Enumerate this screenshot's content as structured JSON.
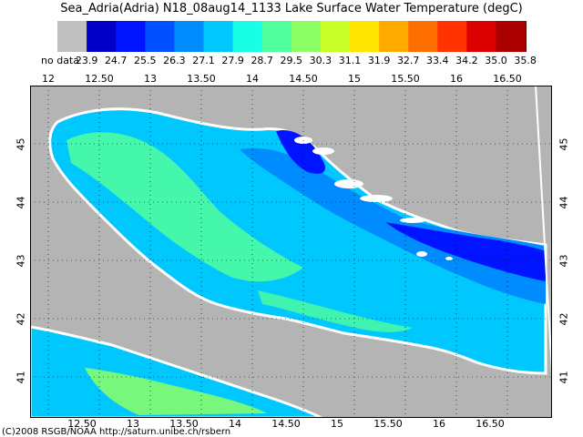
{
  "title": "Sea_Adria(Adria) N18_08aug14_1133 Lake Surface Water Temperature (degC)",
  "legend": {
    "nodata_label": "no data",
    "values": [
      "23.9",
      "24.7",
      "25.5",
      "26.3",
      "27.1",
      "27.9",
      "28.7",
      "29.5",
      "30.3",
      "31.1",
      "31.9",
      "32.7",
      "33.4",
      "34.2",
      "35.0",
      "35.8"
    ],
    "nodata_color": "#c0c0c0",
    "colors": [
      "#0000c8",
      "#0014ff",
      "#0050ff",
      "#008cff",
      "#00c8ff",
      "#19ffe6",
      "#50ff9b",
      "#8cff64",
      "#c8ff28",
      "#ffe600",
      "#ffaa00",
      "#ff6e00",
      "#ff3200",
      "#dc0000",
      "#aa0000",
      "#820000"
    ]
  },
  "lon_labels_top": [
    "12",
    "12.50",
    "13",
    "13.50",
    "14",
    "14.50",
    "15",
    "15.50",
    "16",
    "16.50"
  ],
  "lon_labels_bottom": [
    "12.50",
    "13",
    "13.50",
    "14",
    "14.50",
    "15",
    "15.50",
    "16",
    "16.50"
  ],
  "lat_labels": [
    "45",
    "44",
    "43",
    "42",
    "41"
  ],
  "credit": "(C)2008 RSGB/NOAA http://saturn.unibe.ch/rsbern",
  "colors": {
    "land": "#b4b4b4",
    "coast": "#ffffff",
    "grid": "#000000"
  }
}
